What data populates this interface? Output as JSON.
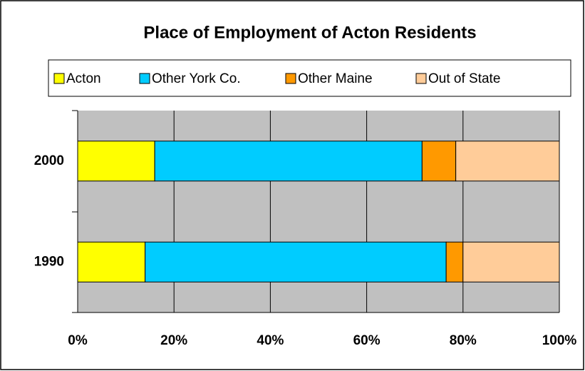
{
  "chart_data": {
    "type": "stacked_bar_horizontal",
    "title": "Place of Employment of Acton Residents",
    "categories": [
      "2000",
      "1990"
    ],
    "series": [
      {
        "name": "Acton",
        "color": "#ffff00",
        "values": [
          16,
          14
        ]
      },
      {
        "name": "Other York Co.",
        "color": "#00ccff",
        "values": [
          55.5,
          62.5
        ]
      },
      {
        "name": "Other Maine",
        "color": "#ff9900",
        "values": [
          7,
          3.5
        ]
      },
      {
        "name": "Out of State",
        "color": "#ffcc99",
        "values": [
          21.5,
          20
        ]
      }
    ],
    "xlim": [
      0,
      100
    ],
    "xticks": [
      {
        "value": 0,
        "label": "0%"
      },
      {
        "value": 20,
        "label": "20%"
      },
      {
        "value": 40,
        "label": "40%"
      },
      {
        "value": 60,
        "label": "60%"
      },
      {
        "value": 80,
        "label": "80%"
      },
      {
        "value": 100,
        "label": "100%"
      }
    ],
    "grid": true,
    "legend": "top"
  }
}
